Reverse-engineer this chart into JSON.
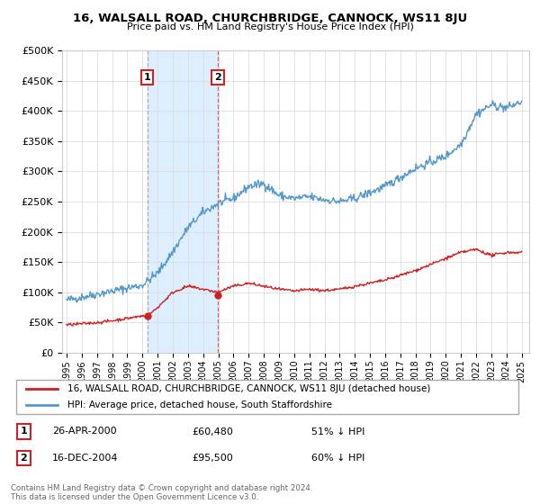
{
  "title": "16, WALSALL ROAD, CHURCHBRIDGE, CANNOCK, WS11 8JU",
  "subtitle": "Price paid vs. HM Land Registry's House Price Index (HPI)",
  "ytick_vals": [
    0,
    50000,
    100000,
    150000,
    200000,
    250000,
    300000,
    350000,
    400000,
    450000,
    500000
  ],
  "sale1": {
    "date_num": 2000.32,
    "price": 60480,
    "label": "1",
    "date_str": "26-APR-2000",
    "hpi_pct": "51% ↓ HPI"
  },
  "sale2": {
    "date_num": 2004.96,
    "price": 95500,
    "label": "2",
    "date_str": "16-DEC-2004",
    "hpi_pct": "60% ↓ HPI"
  },
  "shade_color": "#ddeeff",
  "vline1_color": "#aaaacc",
  "vline2_color": "#dd6666",
  "hpi_line_color": "#5599cc",
  "sale_line_color": "#cc2222",
  "sale_dot_color": "#cc2222",
  "legend_label_sale": "16, WALSALL ROAD, CHURCHBRIDGE, CANNOCK, WS11 8JU (detached house)",
  "legend_label_hpi": "HPI: Average price, detached house, South Staffordshire",
  "footer": "Contains HM Land Registry data © Crown copyright and database right 2024.\nThis data is licensed under the Open Government Licence v3.0.",
  "xtick_years": [
    1995,
    1996,
    1997,
    1998,
    1999,
    2000,
    2001,
    2002,
    2003,
    2004,
    2005,
    2006,
    2007,
    2008,
    2009,
    2010,
    2011,
    2012,
    2013,
    2014,
    2015,
    2016,
    2017,
    2018,
    2019,
    2020,
    2021,
    2022,
    2023,
    2024,
    2025
  ]
}
